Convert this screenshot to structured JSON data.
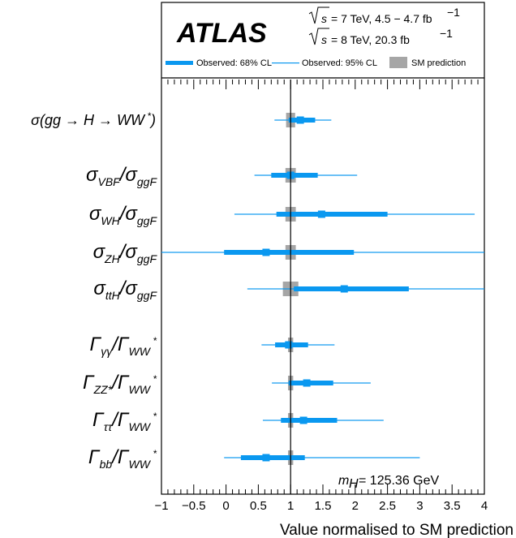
{
  "chart_data": {
    "type": "scatter",
    "title": "",
    "xlabel": "Value normalised to SM prediction",
    "xlim": [
      -1,
      4
    ],
    "x_ticks": [
      "−1",
      "−0.5",
      "0",
      "0.5",
      "1",
      "1.5",
      "2",
      "2.5",
      "3",
      "3.5",
      "4"
    ],
    "x_tick_values": [
      -1,
      -0.5,
      0,
      0.5,
      1,
      1.5,
      2,
      2.5,
      3,
      3.5,
      4
    ],
    "experiment": "ATLAS",
    "energy_line_1": "= 7 TeV, 4.5 − 4.7 fb",
    "energy_line_2": "= 8 TeV, 20.3 fb",
    "lumi_unit_exponent": "−1",
    "mass_label": "= 125.36 GeV",
    "legend": [
      {
        "label": "Observed: 68% CL",
        "color": "#0a98f0"
      },
      {
        "label": "Observed: 95% CL",
        "color": "#0a98f0"
      },
      {
        "label": "SM prediction",
        "color": "#a6a6a6"
      }
    ],
    "rows": [
      {
        "main": "σ(gg → H → WW",
        "sup": "*",
        "tail": ")",
        "value": 1.15,
        "ci68": [
          0.97,
          1.38
        ],
        "ci95": [
          0.75,
          1.63
        ],
        "sm_half": 0.07
      },
      {
        "num": "σ",
        "num_sub": "VBF",
        "den": "σ",
        "den_sub": "ggF",
        "value": 1.0,
        "ci68": [
          0.7,
          1.42
        ],
        "ci95": [
          0.44,
          2.03
        ],
        "sm_half": 0.08
      },
      {
        "num": "σ",
        "num_sub": "WH",
        "den": "σ",
        "den_sub": "ggF",
        "value": 1.48,
        "ci68": [
          0.78,
          2.5
        ],
        "ci95": [
          0.13,
          3.85
        ],
        "sm_half": 0.08
      },
      {
        "num": "σ",
        "num_sub": "ZH",
        "den": "σ",
        "den_sub": "ggF",
        "value": 0.62,
        "ci68": [
          -0.03,
          1.98
        ],
        "ci95": [
          -1.0,
          4.0
        ],
        "sm_half": 0.08
      },
      {
        "num": "σ",
        "num_sub": "ttH",
        "den": "σ",
        "den_sub": "ggF",
        "value": 1.83,
        "ci68": [
          1.05,
          2.83
        ],
        "ci95": [
          0.33,
          4.0
        ],
        "sm_half": 0.12
      },
      {
        "num": "Γ",
        "num_sub": "γγ",
        "den": "Γ",
        "den_sub": "WW",
        "den_sup": "*",
        "value": 0.97,
        "ci68": [
          0.76,
          1.27
        ],
        "ci95": [
          0.55,
          1.68
        ],
        "sm_half": 0.04
      },
      {
        "num": "Γ",
        "num_sub": "ZZ*",
        "den": "Γ",
        "den_sub": "WW",
        "den_sup": "*",
        "value": 1.25,
        "ci68": [
          0.97,
          1.66
        ],
        "ci95": [
          0.71,
          2.24
        ],
        "sm_half": 0.04
      },
      {
        "num": "Γ",
        "num_sub": "ττ",
        "den": "Γ",
        "den_sub": "WW",
        "den_sup": "*",
        "value": 1.2,
        "ci68": [
          0.85,
          1.72
        ],
        "ci95": [
          0.57,
          2.44
        ],
        "sm_half": 0.04
      },
      {
        "num": "Γ",
        "num_sub": "bb",
        "den": "Γ",
        "den_sub": "WW",
        "den_sup": "*",
        "value": 0.62,
        "ci68": [
          0.23,
          1.22
        ],
        "ci95": [
          -0.03,
          3.0
        ],
        "sm_half": 0.04
      }
    ],
    "colors": {
      "ci68": "#0a98f0",
      "ci95": "#0a98f0",
      "sm": "#a6a6a6",
      "axis": "#000000"
    },
    "grid": false
  }
}
